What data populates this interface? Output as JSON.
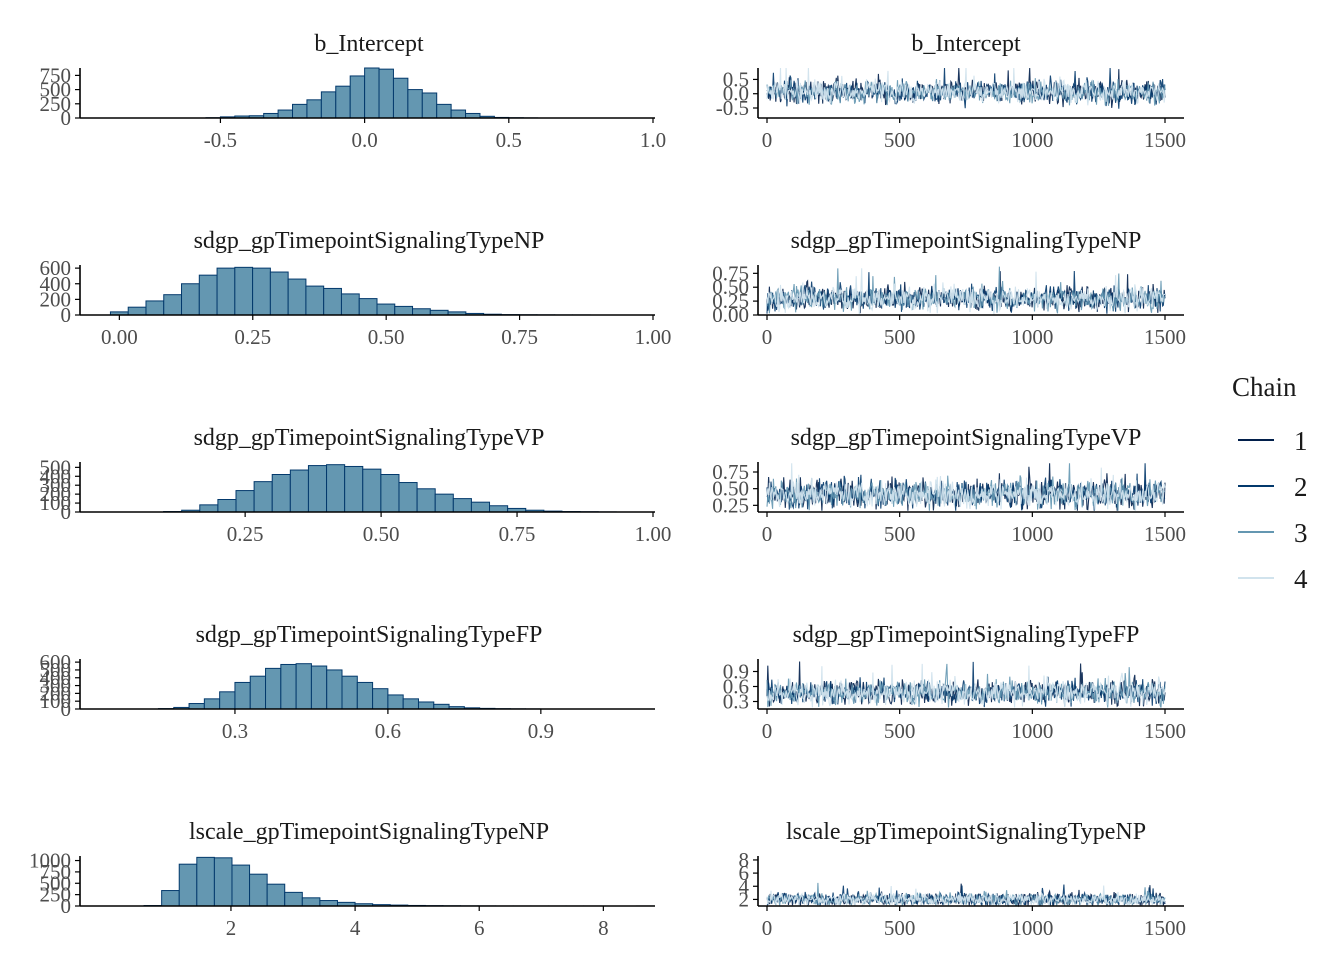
{
  "legend": {
    "title": "Chain",
    "entries": [
      {
        "label": "1",
        "color": "#011f4b"
      },
      {
        "label": "2",
        "color": "#03396c"
      },
      {
        "label": "3",
        "color": "#6497b1"
      },
      {
        "label": "4",
        "color": "#d1e3ed"
      }
    ]
  },
  "colors": {
    "hist_fill": "#6497b1",
    "hist_stroke": "#03396c",
    "axis": "#000000",
    "tick_text": "#4d4d4d"
  },
  "chart_data": [
    {
      "type": "bar",
      "panel": "histogram",
      "title": "b_Intercept",
      "xlim": [
        -0.98,
        1.0
      ],
      "ylim": [
        0,
        880
      ],
      "xticks": [
        -0.5,
        0.0,
        0.5,
        1.0
      ],
      "xtick_labels": [
        "-0.5",
        "0.0",
        "0.5",
        "1.0"
      ],
      "yticks": [
        0,
        250,
        500,
        750
      ],
      "ytick_labels": [
        "0",
        "250",
        "500",
        "750"
      ],
      "bin_start": -0.55,
      "bin_width": 0.05,
      "values": [
        5,
        20,
        35,
        40,
        80,
        140,
        240,
        320,
        460,
        560,
        740,
        880,
        860,
        700,
        500,
        440,
        240,
        140,
        80,
        30,
        10,
        5,
        2
      ]
    },
    {
      "type": "line",
      "panel": "trace",
      "title": "b_Intercept",
      "xlim": [
        0,
        1500
      ],
      "ylim": [
        -0.85,
        0.9
      ],
      "xticks": [
        0,
        500,
        1000,
        1500
      ],
      "xtick_labels": [
        "0",
        "500",
        "1000",
        "1500"
      ],
      "yticks": [
        -0.5,
        0.0,
        0.5
      ],
      "ytick_labels": [
        "-0.5",
        "0.0",
        "0.5"
      ],
      "series": [
        {
          "name": "1",
          "center": 0.07,
          "spread": 0.38,
          "min": -0.85,
          "max": 0.9
        },
        {
          "name": "2",
          "center": 0.07,
          "spread": 0.38,
          "min": -0.85,
          "max": 0.9
        },
        {
          "name": "3",
          "center": 0.07,
          "spread": 0.38,
          "min": -0.85,
          "max": 0.9
        },
        {
          "name": "4",
          "center": 0.07,
          "spread": 0.38,
          "min": -0.85,
          "max": 0.9
        }
      ]
    },
    {
      "type": "bar",
      "panel": "histogram",
      "title": "sdgp_gpTimepointSignalingTypeNP",
      "xlim": [
        -0.07,
        1.0
      ],
      "ylim": [
        0,
        640
      ],
      "xticks": [
        0.0,
        0.25,
        0.5,
        0.75,
        1.0
      ],
      "xtick_labels": [
        "0.00",
        "0.25",
        "0.50",
        "0.75",
        "1.00"
      ],
      "yticks": [
        0,
        200,
        400,
        600
      ],
      "ytick_labels": [
        "0",
        "200",
        "400",
        "600"
      ],
      "bin_start": -0.0167,
      "bin_width": 0.0333,
      "values": [
        40,
        100,
        180,
        260,
        400,
        510,
        600,
        610,
        600,
        550,
        460,
        370,
        340,
        270,
        210,
        140,
        110,
        80,
        60,
        40,
        20,
        10,
        5,
        3,
        2,
        1,
        1
      ]
    },
    {
      "type": "line",
      "panel": "trace",
      "title": "sdgp_gpTimepointSignalingTypeNP",
      "xlim": [
        0,
        1500
      ],
      "ylim": [
        0.0,
        0.9
      ],
      "xticks": [
        0,
        500,
        1000,
        1500
      ],
      "xtick_labels": [
        "0",
        "500",
        "1000",
        "1500"
      ],
      "yticks": [
        0.0,
        0.25,
        0.5,
        0.75
      ],
      "ytick_labels": [
        "0.00",
        "0.25",
        "0.50",
        "0.75"
      ],
      "series": [
        {
          "name": "1",
          "center": 0.3,
          "spread": 0.2,
          "min": 0.01,
          "max": 0.9
        },
        {
          "name": "2",
          "center": 0.3,
          "spread": 0.2,
          "min": 0.01,
          "max": 0.9
        },
        {
          "name": "3",
          "center": 0.3,
          "spread": 0.2,
          "min": 0.01,
          "max": 0.9
        },
        {
          "name": "4",
          "center": 0.3,
          "spread": 0.2,
          "min": 0.01,
          "max": 0.9
        }
      ]
    },
    {
      "type": "bar",
      "panel": "histogram",
      "title": "sdgp_gpTimepointSignalingTypeVP",
      "xlim": [
        -0.05,
        1.0
      ],
      "ylim": [
        0,
        560
      ],
      "xticks": [
        0.25,
        0.5,
        0.75,
        1.0
      ],
      "xtick_labels": [
        "0.25",
        "0.50",
        "0.75",
        "1.00"
      ],
      "yticks": [
        0,
        100,
        200,
        300,
        400,
        500
      ],
      "ytick_labels": [
        "0",
        "100",
        "200",
        "300",
        "400",
        "500"
      ],
      "bin_start": 0.1,
      "bin_width": 0.0333,
      "values": [
        5,
        20,
        80,
        140,
        240,
        340,
        420,
        470,
        520,
        530,
        510,
        480,
        420,
        330,
        260,
        200,
        150,
        110,
        70,
        40,
        20,
        10,
        5,
        3,
        1
      ]
    },
    {
      "type": "line",
      "panel": "trace",
      "title": "sdgp_gpTimepointSignalingTypeVP",
      "xlim": [
        0,
        1500
      ],
      "ylim": [
        0.15,
        0.9
      ],
      "xticks": [
        0,
        500,
        1000,
        1500
      ],
      "xtick_labels": [
        "0",
        "500",
        "1000",
        "1500"
      ],
      "yticks": [
        0.25,
        0.5,
        0.75
      ],
      "ytick_labels": [
        "0.25",
        "0.50",
        "0.75"
      ],
      "series": [
        {
          "name": "1",
          "center": 0.42,
          "spread": 0.2,
          "min": 0.17,
          "max": 0.88
        },
        {
          "name": "2",
          "center": 0.42,
          "spread": 0.2,
          "min": 0.17,
          "max": 0.88
        },
        {
          "name": "3",
          "center": 0.42,
          "spread": 0.2,
          "min": 0.17,
          "max": 0.88
        },
        {
          "name": "4",
          "center": 0.42,
          "spread": 0.2,
          "min": 0.17,
          "max": 0.88
        }
      ]
    },
    {
      "type": "bar",
      "panel": "histogram",
      "title": "sdgp_gpTimepointSignalingTypeFP",
      "xlim": [
        0.0,
        1.12
      ],
      "ylim": [
        0,
        640
      ],
      "xticks": [
        0.3,
        0.6,
        0.9
      ],
      "xtick_labels": [
        "0.3",
        "0.6",
        "0.9"
      ],
      "yticks": [
        0,
        100,
        200,
        300,
        400,
        500,
        600
      ],
      "ytick_labels": [
        "0",
        "100",
        "200",
        "300",
        "400",
        "500",
        "600"
      ],
      "bin_start": 0.15,
      "bin_width": 0.03,
      "values": [
        5,
        20,
        70,
        130,
        220,
        340,
        420,
        520,
        570,
        580,
        550,
        500,
        420,
        340,
        260,
        180,
        130,
        90,
        60,
        30,
        15,
        8,
        4,
        2,
        1
      ]
    },
    {
      "type": "line",
      "panel": "trace",
      "title": "sdgp_gpTimepointSignalingTypeFP",
      "xlim": [
        0,
        1500
      ],
      "ylim": [
        0.15,
        1.15
      ],
      "xticks": [
        0,
        500,
        1000,
        1500
      ],
      "xtick_labels": [
        "0",
        "500",
        "1000",
        "1500"
      ],
      "yticks": [
        0.3,
        0.6,
        0.9
      ],
      "ytick_labels": [
        "0.3",
        "0.6",
        "0.9"
      ],
      "series": [
        {
          "name": "1",
          "center": 0.48,
          "spread": 0.22,
          "min": 0.18,
          "max": 1.1
        },
        {
          "name": "2",
          "center": 0.48,
          "spread": 0.22,
          "min": 0.18,
          "max": 1.1
        },
        {
          "name": "3",
          "center": 0.48,
          "spread": 0.22,
          "min": 0.18,
          "max": 1.1
        },
        {
          "name": "4",
          "center": 0.48,
          "spread": 0.22,
          "min": 0.18,
          "max": 1.1
        }
      ]
    },
    {
      "type": "bar",
      "panel": "histogram",
      "title": "lscale_gpTimepointSignalingTypeNP",
      "xlim": [
        -0.4,
        8.8
      ],
      "ylim": [
        0,
        1100
      ],
      "xticks": [
        2,
        4,
        6,
        8
      ],
      "xtick_labels": [
        "2",
        "4",
        "6",
        "8"
      ],
      "yticks": [
        0,
        250,
        500,
        750,
        1000
      ],
      "ytick_labels": [
        "0",
        "250",
        "500",
        "750",
        "1000"
      ],
      "bin_start": 0.6,
      "bin_width": 0.2833,
      "values": [
        10,
        340,
        920,
        1070,
        1060,
        900,
        700,
        480,
        300,
        180,
        120,
        80,
        50,
        30,
        20,
        12,
        8,
        5,
        3,
        2,
        1,
        1,
        1,
        1,
        1,
        1,
        0,
        0,
        1
      ]
    },
    {
      "type": "line",
      "panel": "trace",
      "title": "lscale_gpTimepointSignalingTypeNP",
      "xlim": [
        0,
        1500
      ],
      "ylim": [
        1.0,
        8.6
      ],
      "xticks": [
        0,
        500,
        1000,
        1500
      ],
      "xtick_labels": [
        "0",
        "500",
        "1000",
        "1500"
      ],
      "yticks": [
        2,
        4,
        6,
        8
      ],
      "ytick_labels": [
        "2",
        "4",
        "6",
        "8"
      ],
      "series": [
        {
          "name": "1",
          "center": 2.0,
          "spread": 0.9,
          "min": 1.1,
          "max": 8.3
        },
        {
          "name": "2",
          "center": 2.0,
          "spread": 0.9,
          "min": 1.1,
          "max": 8.3
        },
        {
          "name": "3",
          "center": 2.0,
          "spread": 0.9,
          "min": 1.1,
          "max": 8.3
        },
        {
          "name": "4",
          "center": 2.0,
          "spread": 0.9,
          "min": 1.1,
          "max": 8.3
        }
      ]
    }
  ]
}
